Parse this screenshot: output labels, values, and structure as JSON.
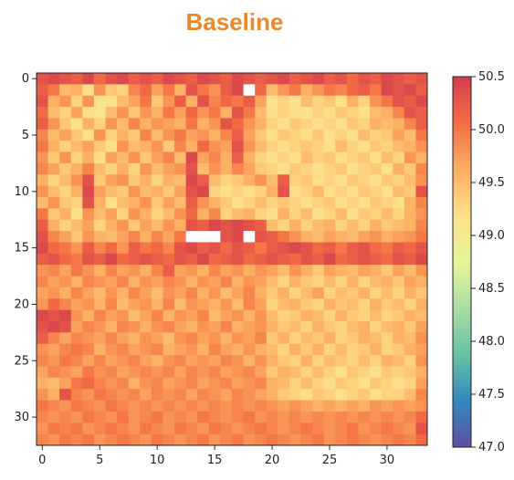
{
  "chart_data": {
    "type": "heatmap",
    "title": "Baseline",
    "xlabel": "",
    "ylabel": "",
    "x_ticks": [
      "0",
      "5",
      "10",
      "15",
      "20",
      "25",
      "30"
    ],
    "y_ticks": [
      "0",
      "5",
      "10",
      "15",
      "20",
      "25",
      "30"
    ],
    "xlim": [
      -0.5,
      33.5
    ],
    "ylim": [
      32.5,
      -0.5
    ],
    "grid": false,
    "colorbar": {
      "min": 47.0,
      "max": 50.5,
      "ticks": [
        "47.0",
        "47.5",
        "48.0",
        "48.5",
        "49.0",
        "49.5",
        "50.0",
        "50.5"
      ],
      "colormap": [
        "#5e4fa2",
        "#3288bd",
        "#66c2a5",
        "#abdda4",
        "#e6f598",
        "#fee08b",
        "#fdae61",
        "#f46d43",
        "#d53e4f"
      ]
    },
    "n_rows": 33,
    "n_cols": 34,
    "masked_cells_note": "NaN cells rendered white",
    "rows": [
      [
        50.3,
        50.4,
        50.3,
        50.2,
        50.4,
        50.1,
        50.3,
        50.4,
        50.2,
        50.3,
        50.2,
        50.4,
        50.3,
        50.2,
        50.4,
        50.3,
        50.2,
        50.4,
        50.3,
        50.2,
        50.3,
        50.4,
        50.2,
        50.3,
        50.4,
        50.2,
        50.3,
        50.1,
        50.3,
        50.2,
        50.4,
        50.3,
        50.2,
        50.3
      ],
      [
        50.2,
        50.0,
        49.5,
        49.6,
        49.2,
        49.8,
        49.4,
        49.3,
        49.9,
        50.1,
        49.7,
        50.0,
        49.6,
        50.3,
        50.0,
        49.8,
        50.2,
        50.4,
        null,
        50.1,
        49.5,
        49.8,
        50.0,
        49.6,
        49.8,
        50.0,
        49.9,
        50.1,
        50.2,
        50.0,
        50.4,
        50.3,
        50.4,
        50.2
      ],
      [
        50.3,
        49.6,
        49.8,
        49.3,
        49.8,
        49.1,
        49.2,
        49.5,
        49.7,
        50.0,
        49.4,
        49.8,
        50.2,
        49.6,
        50.3,
        49.9,
        50.1,
        50.0,
        50.2,
        49.7,
        49.2,
        49.3,
        49.2,
        49.5,
        49.3,
        49.4,
        49.2,
        49.6,
        49.3,
        49.8,
        50.0,
        50.3,
        50.2,
        50.4
      ],
      [
        50.1,
        49.5,
        49.3,
        49.7,
        49.2,
        49.1,
        49.5,
        49.8,
        49.4,
        49.8,
        49.6,
        50.0,
        49.7,
        50.1,
        49.8,
        50.0,
        49.6,
        50.3,
        50.0,
        49.5,
        49.2,
        49.3,
        49.2,
        49.1,
        49.3,
        49.2,
        49.4,
        49.3,
        49.2,
        49.5,
        49.6,
        49.9,
        50.3,
        50.2
      ],
      [
        50.2,
        49.8,
        49.4,
        49.2,
        49.6,
        49.3,
        49.8,
        49.5,
        49.9,
        49.6,
        49.8,
        49.7,
        49.6,
        50.0,
        49.6,
        49.8,
        50.3,
        50.1,
        49.8,
        49.6,
        49.3,
        49.2,
        49.4,
        49.3,
        49.2,
        49.3,
        49.2,
        49.4,
        49.3,
        49.6,
        49.5,
        49.6,
        49.9,
        50.2
      ],
      [
        49.9,
        49.5,
        49.7,
        49.4,
        49.2,
        49.8,
        49.3,
        49.6,
        49.4,
        49.9,
        49.5,
        49.8,
        50.0,
        49.7,
        49.8,
        49.6,
        49.9,
        50.2,
        49.7,
        49.4,
        49.2,
        49.4,
        49.3,
        49.2,
        49.4,
        49.2,
        49.3,
        49.2,
        49.5,
        49.3,
        49.4,
        49.7,
        49.5,
        50.0
      ],
      [
        50.0,
        49.6,
        49.3,
        49.5,
        49.7,
        49.4,
        49.2,
        49.8,
        49.5,
        49.6,
        49.8,
        49.4,
        49.9,
        49.6,
        50.1,
        49.8,
        49.7,
        50.3,
        49.8,
        49.5,
        49.3,
        49.2,
        49.3,
        49.4,
        49.3,
        49.2,
        49.5,
        49.3,
        49.2,
        49.4,
        49.3,
        49.5,
        49.6,
        49.8
      ],
      [
        49.8,
        49.4,
        49.8,
        49.3,
        49.6,
        49.2,
        49.7,
        49.5,
        49.8,
        49.4,
        49.7,
        49.9,
        49.5,
        50.4,
        49.7,
        49.9,
        49.6,
        50.2,
        49.6,
        49.3,
        49.2,
        49.3,
        49.2,
        49.5,
        49.3,
        49.4,
        49.2,
        49.3,
        49.4,
        49.2,
        49.5,
        49.3,
        49.8,
        49.6
      ],
      [
        49.9,
        49.7,
        49.4,
        49.6,
        49.9,
        49.5,
        49.3,
        49.6,
        49.3,
        49.8,
        49.5,
        49.7,
        49.8,
        50.3,
        49.5,
        49.8,
        49.6,
        49.9,
        49.7,
        49.4,
        49.3,
        49.2,
        49.4,
        49.3,
        49.2,
        49.3,
        49.4,
        49.2,
        49.3,
        49.4,
        49.2,
        49.6,
        49.4,
        49.9
      ],
      [
        49.6,
        49.3,
        49.5,
        49.8,
        50.3,
        49.4,
        49.7,
        49.8,
        49.4,
        49.6,
        49.3,
        49.6,
        49.5,
        50.4,
        50.2,
        49.5,
        49.3,
        49.4,
        49.6,
        49.8,
        49.5,
        50.2,
        49.3,
        49.4,
        49.2,
        49.3,
        49.2,
        49.4,
        49.3,
        49.2,
        49.4,
        49.3,
        49.5,
        49.8
      ],
      [
        49.8,
        49.5,
        49.3,
        49.6,
        50.4,
        49.7,
        49.5,
        49.4,
        49.8,
        49.5,
        49.6,
        49.4,
        49.7,
        50.3,
        50.4,
        49.3,
        49.2,
        49.3,
        49.2,
        49.3,
        49.6,
        50.3,
        49.2,
        49.3,
        49.5,
        49.2,
        49.3,
        49.2,
        49.4,
        49.3,
        49.2,
        49.5,
        49.4,
        50.3
      ],
      [
        49.5,
        49.8,
        49.4,
        49.3,
        50.3,
        49.6,
        49.2,
        49.5,
        49.6,
        49.8,
        49.4,
        49.7,
        49.5,
        50.2,
        49.8,
        49.6,
        49.4,
        49.2,
        49.3,
        49.5,
        49.3,
        49.4,
        49.3,
        49.2,
        49.3,
        49.4,
        49.2,
        49.3,
        49.2,
        49.4,
        49.3,
        49.2,
        49.6,
        49.9
      ],
      [
        50.0,
        49.4,
        49.6,
        49.2,
        49.8,
        49.5,
        49.7,
        49.3,
        49.8,
        49.6,
        49.3,
        49.5,
        49.8,
        50.1,
        49.6,
        49.9,
        49.3,
        49.5,
        49.6,
        49.3,
        49.2,
        49.6,
        49.3,
        49.5,
        49.2,
        49.3,
        49.5,
        49.2,
        49.4,
        49.3,
        49.5,
        49.3,
        49.6,
        49.8
      ],
      [
        50.2,
        49.6,
        49.3,
        49.5,
        49.7,
        49.3,
        49.6,
        49.8,
        49.4,
        49.7,
        49.5,
        49.8,
        49.6,
        50.3,
        50.2,
        50.4,
        50.3,
        50.4,
        50.3,
        50.2,
        49.5,
        49.3,
        49.6,
        49.3,
        49.5,
        49.6,
        49.3,
        49.5,
        49.3,
        49.6,
        49.4,
        49.5,
        49.6,
        49.9
      ],
      [
        50.3,
        49.9,
        49.7,
        49.4,
        49.8,
        49.6,
        49.5,
        49.7,
        49.9,
        49.6,
        49.9,
        49.7,
        50.0,
        null,
        null,
        null,
        50.3,
        50.4,
        null,
        50.3,
        50.2,
        50.0,
        49.8,
        49.6,
        49.5,
        49.7,
        49.6,
        49.5,
        49.7,
        49.8,
        49.6,
        49.7,
        49.8,
        50.0
      ],
      [
        50.4,
        50.1,
        50.0,
        49.8,
        50.2,
        49.9,
        50.1,
        49.8,
        50.2,
        50.0,
        50.1,
        49.9,
        50.3,
        50.4,
        50.2,
        50.3,
        50.1,
        50.3,
        50.2,
        50.0,
        50.2,
        50.3,
        50.4,
        50.3,
        50.1,
        50.2,
        50.0,
        50.2,
        50.3,
        50.1,
        50.0,
        50.2,
        50.1,
        50.3
      ],
      [
        50.2,
        50.3,
        50.1,
        50.0,
        50.3,
        50.2,
        50.4,
        50.1,
        50.2,
        50.3,
        50.2,
        50.1,
        50.3,
        50.2,
        50.4,
        50.1,
        50.2,
        50.3,
        50.1,
        50.2,
        50.3,
        50.2,
        50.1,
        50.3,
        50.2,
        50.4,
        50.1,
        50.2,
        50.3,
        50.2,
        50.1,
        50.3,
        50.2,
        50.4
      ],
      [
        49.8,
        49.9,
        49.7,
        50.0,
        49.8,
        49.6,
        49.9,
        49.7,
        49.8,
        49.6,
        49.9,
        50.2,
        49.7,
        49.8,
        49.6,
        49.9,
        49.7,
        49.8,
        49.6,
        49.8,
        49.7,
        49.5,
        49.8,
        49.6,
        49.4,
        49.7,
        49.6,
        49.5,
        49.7,
        49.6,
        49.4,
        49.7,
        49.5,
        49.8
      ],
      [
        49.9,
        49.7,
        49.8,
        49.6,
        49.9,
        49.8,
        49.7,
        49.9,
        49.6,
        49.8,
        49.7,
        49.9,
        49.8,
        49.6,
        49.8,
        49.7,
        49.9,
        49.6,
        49.8,
        49.7,
        49.5,
        49.3,
        49.6,
        49.4,
        49.3,
        49.5,
        49.3,
        49.6,
        49.3,
        49.5,
        49.6,
        49.4,
        49.7,
        49.6
      ],
      [
        49.7,
        49.8,
        49.6,
        49.9,
        49.7,
        49.5,
        49.8,
        49.6,
        49.9,
        49.7,
        49.5,
        49.8,
        49.7,
        49.9,
        49.6,
        49.8,
        49.5,
        49.7,
        49.9,
        49.6,
        49.4,
        49.6,
        49.3,
        49.5,
        49.7,
        49.3,
        49.5,
        49.4,
        49.6,
        49.3,
        49.5,
        49.3,
        49.6,
        49.4
      ],
      [
        49.8,
        50.1,
        49.9,
        49.7,
        49.8,
        49.6,
        49.9,
        49.5,
        49.7,
        49.8,
        49.6,
        49.9,
        49.5,
        49.8,
        49.7,
        49.6,
        49.8,
        49.5,
        49.9,
        49.7,
        49.3,
        49.5,
        49.6,
        49.4,
        49.3,
        49.6,
        49.4,
        49.5,
        49.3,
        49.6,
        49.4,
        49.5,
        49.3,
        49.6
      ],
      [
        50.4,
        50.3,
        50.4,
        49.8,
        49.6,
        49.9,
        49.7,
        49.8,
        49.5,
        49.7,
        49.9,
        49.6,
        49.8,
        49.7,
        49.9,
        49.5,
        49.7,
        49.8,
        49.6,
        49.8,
        49.5,
        49.3,
        49.4,
        49.6,
        49.5,
        49.3,
        49.6,
        49.4,
        49.3,
        49.5,
        49.3,
        49.4,
        49.6,
        49.5
      ],
      [
        50.3,
        50.4,
        50.3,
        49.7,
        49.9,
        49.8,
        49.6,
        49.9,
        49.8,
        49.6,
        49.8,
        49.9,
        49.7,
        49.6,
        49.8,
        49.7,
        49.9,
        49.6,
        49.7,
        49.8,
        49.6,
        49.4,
        49.5,
        49.3,
        49.6,
        49.4,
        49.3,
        49.5,
        49.6,
        49.3,
        49.5,
        49.6,
        49.4,
        49.7
      ],
      [
        50.2,
        49.9,
        49.7,
        49.9,
        49.8,
        49.7,
        49.9,
        49.7,
        49.6,
        49.8,
        49.7,
        49.5,
        49.8,
        49.9,
        49.7,
        49.8,
        49.6,
        49.8,
        49.7,
        49.9,
        49.4,
        49.6,
        49.3,
        49.5,
        49.4,
        49.6,
        49.3,
        49.4,
        49.6,
        49.5,
        49.3,
        49.6,
        49.5,
        49.8
      ],
      [
        49.8,
        49.7,
        49.9,
        50.0,
        49.9,
        49.6,
        49.8,
        49.9,
        49.7,
        49.8,
        49.9,
        49.6,
        49.7,
        49.8,
        49.6,
        49.9,
        49.7,
        49.6,
        49.8,
        49.6,
        49.5,
        49.3,
        49.6,
        49.4,
        49.6,
        49.3,
        49.5,
        49.3,
        49.4,
        49.6,
        49.3,
        49.4,
        49.6,
        49.7
      ],
      [
        49.9,
        49.8,
        50.0,
        49.9,
        49.7,
        49.9,
        49.7,
        49.8,
        49.9,
        49.7,
        49.6,
        49.8,
        49.9,
        49.7,
        49.8,
        49.7,
        49.9,
        49.8,
        49.6,
        49.8,
        49.6,
        49.4,
        49.3,
        49.6,
        49.3,
        49.5,
        49.4,
        49.3,
        49.5,
        49.3,
        49.6,
        49.5,
        49.3,
        49.8
      ],
      [
        49.7,
        49.9,
        49.8,
        49.7,
        50.0,
        49.8,
        49.9,
        49.7,
        49.8,
        49.9,
        49.8,
        49.9,
        49.7,
        49.9,
        49.8,
        49.9,
        49.7,
        49.8,
        49.9,
        49.7,
        49.4,
        49.6,
        49.5,
        49.3,
        49.5,
        49.3,
        49.2,
        49.4,
        49.3,
        49.2,
        49.4,
        49.3,
        49.4,
        49.6
      ],
      [
        49.6,
        49.5,
        49.7,
        50.0,
        50.1,
        49.9,
        49.8,
        49.9,
        49.6,
        49.8,
        49.9,
        49.7,
        49.8,
        49.9,
        49.7,
        49.8,
        49.9,
        49.7,
        49.8,
        49.9,
        49.6,
        49.5,
        49.3,
        49.5,
        49.3,
        49.2,
        49.4,
        49.3,
        49.2,
        49.4,
        49.3,
        49.2,
        49.3,
        49.7
      ],
      [
        49.8,
        49.6,
        50.3,
        49.9,
        49.8,
        50.0,
        49.9,
        49.8,
        49.9,
        49.7,
        49.9,
        49.8,
        49.9,
        49.7,
        49.9,
        49.8,
        49.7,
        49.9,
        49.8,
        49.7,
        49.6,
        49.4,
        49.3,
        49.2,
        49.4,
        49.3,
        49.2,
        49.3,
        49.4,
        49.2,
        49.3,
        49.3,
        49.5,
        49.9
      ],
      [
        50.0,
        49.9,
        49.8,
        50.0,
        49.9,
        49.8,
        50.0,
        49.9,
        49.8,
        49.9,
        49.8,
        49.9,
        49.8,
        49.9,
        49.8,
        49.9,
        49.8,
        49.9,
        49.8,
        49.9,
        49.8,
        49.7,
        49.8,
        49.7,
        49.6,
        49.7,
        49.6,
        49.7,
        49.6,
        49.8,
        49.7,
        49.8,
        49.7,
        49.8
      ],
      [
        49.9,
        49.8,
        49.9,
        49.8,
        50.0,
        49.9,
        49.8,
        50.0,
        49.8,
        49.9,
        50.0,
        49.8,
        49.9,
        49.8,
        50.0,
        49.9,
        49.8,
        49.9,
        50.0,
        49.8,
        49.9,
        49.8,
        49.9,
        49.8,
        49.9,
        49.8,
        49.9,
        49.8,
        49.9,
        49.8,
        49.9,
        49.8,
        49.9,
        50.1
      ],
      [
        49.8,
        50.0,
        49.9,
        50.0,
        49.8,
        49.9,
        50.0,
        49.9,
        49.8,
        50.0,
        49.9,
        49.8,
        50.0,
        49.9,
        49.8,
        50.0,
        49.9,
        49.8,
        49.9,
        50.0,
        49.9,
        49.8,
        49.9,
        50.0,
        49.9,
        49.8,
        49.9,
        50.0,
        49.8,
        49.9,
        50.0,
        49.9,
        49.8,
        50.3
      ],
      [
        49.9,
        49.8,
        50.0,
        49.9,
        50.0,
        49.8,
        49.9,
        50.0,
        49.9,
        49.8,
        50.0,
        49.9,
        49.8,
        49.9,
        50.0,
        49.8,
        49.9,
        50.0,
        49.8,
        49.9,
        50.0,
        49.9,
        49.8,
        49.9,
        50.0,
        49.8,
        49.9,
        50.0,
        49.9,
        49.8,
        49.9,
        50.0,
        49.9,
        50.1
      ]
    ]
  }
}
